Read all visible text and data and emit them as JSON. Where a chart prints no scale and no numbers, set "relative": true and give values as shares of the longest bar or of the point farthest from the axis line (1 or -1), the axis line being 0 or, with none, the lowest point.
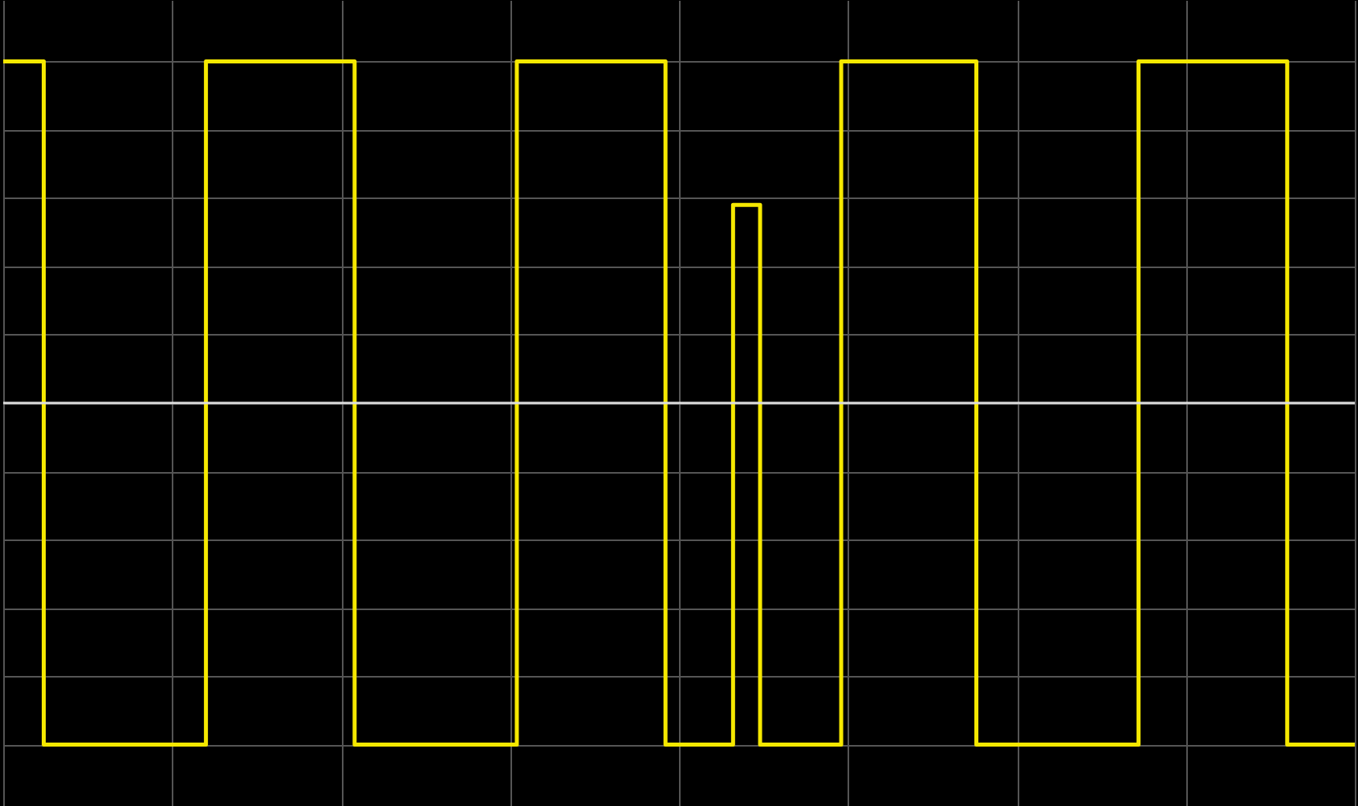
{
  "chart_data": {
    "type": "step",
    "relative": true,
    "grid": true,
    "tick_labels": false,
    "categories": [
      null,
      null,
      null,
      null,
      null,
      null,
      null,
      null,
      null,
      null,
      null,
      null,
      null,
      null,
      null,
      null,
      null,
      null,
      null,
      null,
      null,
      null,
      null,
      null,
      null,
      null,
      null,
      null,
      null,
      null,
      null,
      null,
      null,
      null,
      null,
      null,
      null,
      null,
      null,
      null,
      null,
      null,
      null,
      null,
      null,
      null,
      null,
      null,
      null,
      null,
      null,
      null,
      null,
      null,
      null,
      null,
      null,
      null,
      null,
      null,
      null,
      null,
      null,
      null,
      null,
      null,
      null,
      null,
      null,
      null,
      null,
      null,
      null,
      null,
      null,
      null,
      null,
      null,
      null,
      null,
      null,
      null,
      null,
      null,
      null,
      null,
      null,
      null,
      null,
      null,
      null,
      null,
      null,
      null,
      null,
      null,
      null,
      null,
      null,
      null,
      null
    ],
    "series": [
      {
        "color": "#f5e800",
        "values": [
          1,
          1,
          1,
          -1,
          -1,
          -1,
          -1,
          -1,
          -1,
          -1,
          -1,
          -1,
          -1,
          -1,
          -1,
          1,
          1,
          1,
          1,
          1,
          1,
          1,
          1,
          1,
          1,
          1,
          -1,
          -1,
          -1,
          -1,
          -1,
          -1,
          -1,
          -1,
          -1,
          -1,
          -1,
          -1,
          1,
          1,
          1,
          1,
          1,
          1,
          1,
          1,
          1,
          1,
          1,
          -1,
          -1,
          -1,
          -1,
          -1,
          0.58,
          0.58,
          -1,
          -1,
          -1,
          -1,
          -1,
          -1,
          1,
          1,
          1,
          1,
          1,
          1,
          1,
          1,
          1,
          1,
          -1,
          -1,
          -1,
          -1,
          -1,
          -1,
          -1,
          -1,
          -1,
          -1,
          -1,
          -1,
          1,
          1,
          1,
          1,
          1,
          1,
          1,
          1,
          1,
          1,
          1,
          -1,
          -1,
          -1,
          -1,
          -1,
          -1
        ]
      }
    ]
  }
}
